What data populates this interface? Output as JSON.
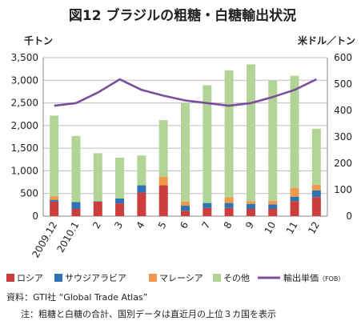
{
  "chart_data": {
    "type": "bar",
    "title": "図12 ブラジルの粗糖・白糖輸出状況",
    "y_left_unit": "千トン",
    "y_right_unit": "米ドル／トン",
    "categories": [
      "2009.12",
      "2010.1",
      "2",
      "3",
      "4",
      "5",
      "6",
      "7",
      "8",
      "9",
      "10",
      "11",
      "12"
    ],
    "y_left_ticks": [
      "0",
      "500",
      "1,000",
      "1,500",
      "2,000",
      "2,500",
      "3,000",
      "3,500"
    ],
    "y_right_ticks": [
      "0",
      "100",
      "200",
      "300",
      "400",
      "500",
      "600"
    ],
    "ylim_left": [
      0,
      3500
    ],
    "ylim_right": [
      0,
      600
    ],
    "series": [
      {
        "name": "ロシア",
        "kind": "stacked-bar",
        "axis": "left",
        "color": "#cc3d3d",
        "values": [
          320,
          160,
          320,
          280,
          520,
          680,
          120,
          180,
          180,
          160,
          160,
          330,
          420
        ]
      },
      {
        "name": "サウジアラビア",
        "kind": "stacked-bar",
        "axis": "left",
        "color": "#2e74b5",
        "values": [
          40,
          150,
          10,
          110,
          160,
          0,
          110,
          110,
          110,
          110,
          100,
          100,
          150
        ]
      },
      {
        "name": "マレーシア",
        "kind": "stacked-bar",
        "axis": "left",
        "color": "#f0994c",
        "values": [
          80,
          0,
          0,
          0,
          0,
          190,
          90,
          0,
          130,
          60,
          80,
          190,
          120
        ]
      },
      {
        "name": "その他",
        "kind": "stacked-bar",
        "axis": "left",
        "color": "#b3d497",
        "values": [
          1780,
          1460,
          1060,
          900,
          660,
          1250,
          2180,
          2600,
          2800,
          3020,
          2650,
          2480,
          1240
        ]
      },
      {
        "name": "輸出単価",
        "name_suffix": "（FOB）",
        "kind": "line",
        "axis": "right",
        "color": "#7a4e9e",
        "values": [
          418,
          428,
          468,
          518,
          478,
          456,
          438,
          428,
          418,
          428,
          451,
          478,
          518
        ]
      }
    ],
    "grid": true,
    "legend": "bottom"
  },
  "source": "資料：GTI社 “Global Trade Atlas”",
  "note": "注：粗糖と白糖の合計、国別データは直近月の上位３カ国を表示"
}
